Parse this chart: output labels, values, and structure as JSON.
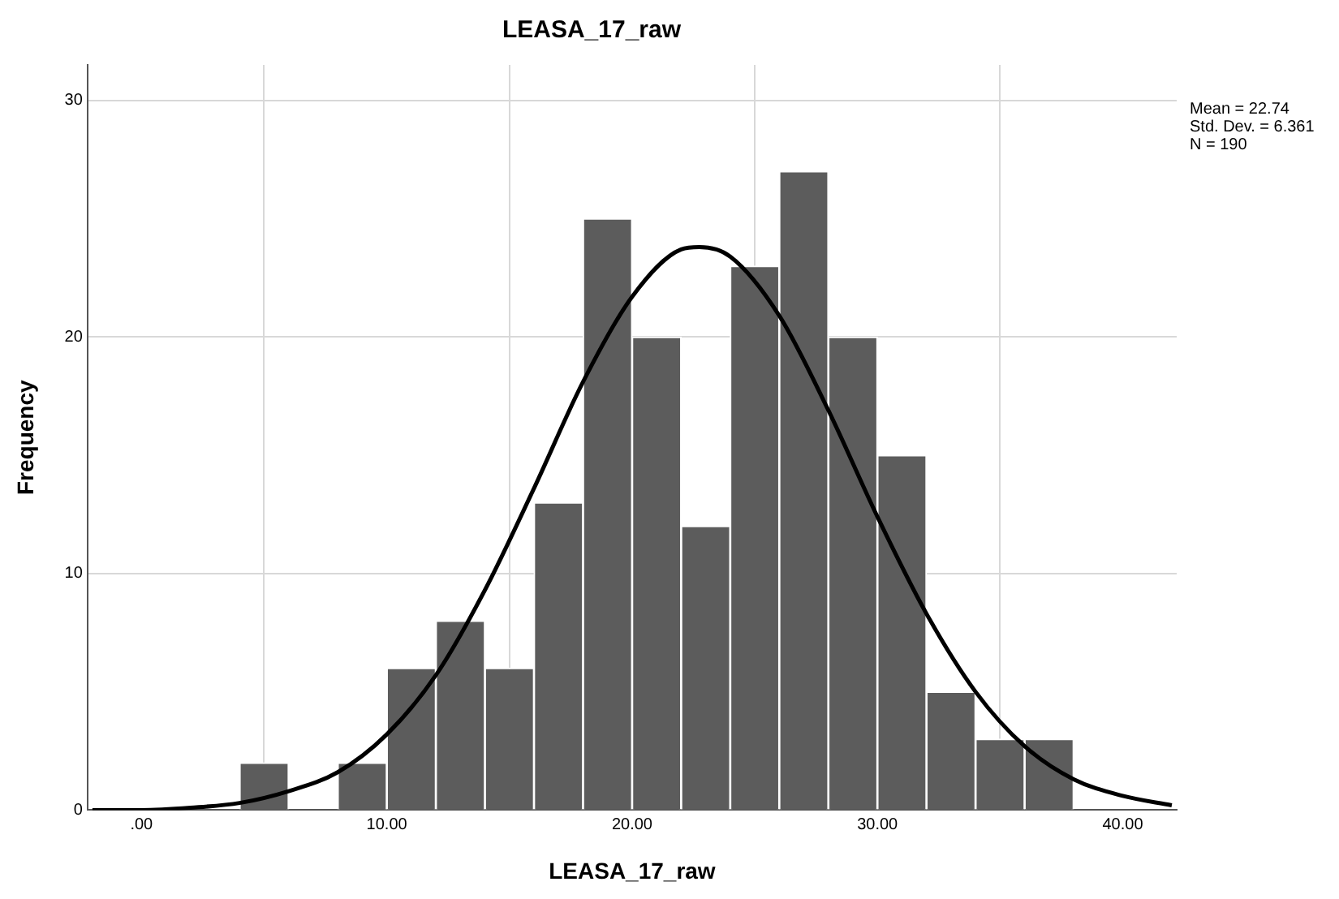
{
  "chart_data": {
    "type": "histogram",
    "title": "LEASA_17_raw",
    "xlabel": "LEASA_17_raw",
    "ylabel": "Frequency",
    "bins": [
      4,
      6,
      8,
      10,
      12,
      14,
      16,
      18,
      20,
      22,
      24,
      26,
      28,
      30,
      32,
      34,
      36,
      38
    ],
    "values": [
      2,
      0,
      2,
      6,
      8,
      6,
      13,
      25,
      20,
      12,
      23,
      27,
      20,
      15,
      5,
      3,
      3
    ],
    "color": "#5c5c5c",
    "series": [
      {
        "type": "line",
        "color": "#000000",
        "x": [
          -2,
          0,
          2,
          4,
          6,
          8,
          10,
          12,
          14,
          16,
          18,
          20,
          22,
          22.74,
          24,
          26,
          28,
          30,
          32,
          34,
          36,
          38,
          40,
          42
        ],
        "values": [
          0.0,
          0.0,
          0.1,
          0.3,
          0.8,
          1.6,
          3.2,
          5.7,
          9.3,
          13.6,
          18.1,
          21.7,
          23.7,
          23.8,
          23.4,
          20.9,
          16.9,
          12.4,
          8.3,
          5.0,
          2.7,
          1.3,
          0.6,
          0.2
        ]
      }
    ],
    "xlim": [
      -2.2,
      42.2
    ],
    "xticks": [
      {
        "value": 0,
        "label": ".00"
      },
      {
        "value": 10,
        "label": "10.00"
      },
      {
        "value": 20,
        "label": "20.00"
      },
      {
        "value": 30,
        "label": "30.00"
      },
      {
        "value": 40,
        "label": "40.00"
      }
    ],
    "ylim": [
      0,
      31.5
    ],
    "yticks": [
      0,
      10,
      20,
      30
    ],
    "grid": true,
    "legend": false,
    "annotations": [
      "Mean = 22.74",
      "Std. Dev. = 6.361",
      "N = 190"
    ]
  }
}
